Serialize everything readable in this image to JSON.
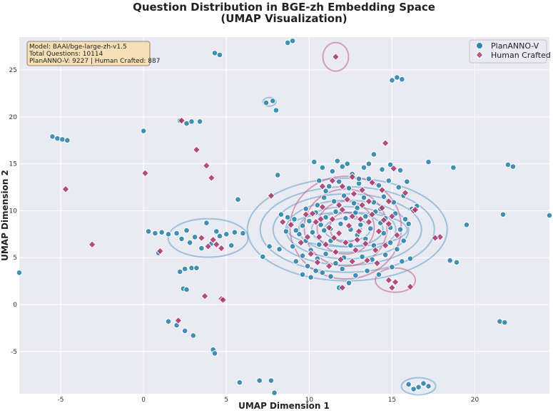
{
  "chart_data": {
    "type": "scatter",
    "title_line1": "Question Distribution in BGE-zh Embedding Space",
    "title_line2": "(UMAP Visualization)",
    "xlabel": "UMAP Dimension 1",
    "ylabel": "UMAP Dimension 2",
    "xlim": [
      -7.5,
      24.5
    ],
    "ylim": [
      -9.5,
      28.5
    ],
    "xticks": [
      -5,
      0,
      5,
      10,
      15,
      20
    ],
    "yticks": [
      -5,
      0,
      5,
      10,
      15,
      20,
      25
    ],
    "grid": true,
    "legend_position": "top-right",
    "info_box": {
      "lines": [
        "Model: BAAI/bge-large-zh-v1.5",
        "Total Questions: 10114",
        "PlanANNO-V: 9227 | Human Crafted: 887"
      ]
    },
    "series": [
      {
        "name": "PlanANNO-V",
        "marker": "circle",
        "color": "#2f86ad",
        "points": [
          [
            -7.5,
            3.4
          ],
          [
            -5.5,
            17.9
          ],
          [
            -5.2,
            17.7
          ],
          [
            -4.9,
            17.6
          ],
          [
            -4.6,
            17.5
          ],
          [
            0,
            18.5
          ],
          [
            0.3,
            7.8
          ],
          [
            0.7,
            7.6
          ],
          [
            1.1,
            7.7
          ],
          [
            0.9,
            5.5
          ],
          [
            1.5,
            7.5
          ],
          [
            2.0,
            7.6
          ],
          [
            2.3,
            7.0
          ],
          [
            2.6,
            7.9
          ],
          [
            2.2,
            3.5
          ],
          [
            2.5,
            3.8
          ],
          [
            2.9,
            3.9
          ],
          [
            3.2,
            3.9
          ],
          [
            2.4,
            1.7
          ],
          [
            2.6,
            1.6
          ],
          [
            1.5,
            -1.8
          ],
          [
            2.0,
            -2.2
          ],
          [
            2.5,
            -2.8
          ],
          [
            3.0,
            -3.3
          ],
          [
            4.2,
            -4.8
          ],
          [
            4.3,
            -5.2
          ],
          [
            5.8,
            -8.3
          ],
          [
            7.0,
            -8.1
          ],
          [
            7.7,
            -8.1
          ],
          [
            7.9,
            -9.4
          ],
          [
            2.2,
            19.6
          ],
          [
            2.6,
            19.3
          ],
          [
            2.9,
            19.5
          ],
          [
            3.4,
            19.5
          ],
          [
            4.3,
            26.8
          ],
          [
            4.6,
            26.6
          ],
          [
            7.4,
            21.5
          ],
          [
            7.8,
            21.7
          ],
          [
            8.0,
            20.7
          ],
          [
            8.7,
            27.9
          ],
          [
            9.0,
            28.1
          ],
          [
            5.7,
            11.2
          ],
          [
            8.1,
            13.8
          ],
          [
            3.8,
            8.7
          ],
          [
            4.6,
            7.3
          ],
          [
            5.0,
            7.5
          ],
          [
            5.5,
            7.7
          ],
          [
            5.3,
            6.3
          ],
          [
            6.0,
            7.6
          ],
          [
            3.5,
            6.0
          ],
          [
            4.1,
            6.5
          ],
          [
            3.1,
            7.2
          ],
          [
            2.8,
            6.6
          ],
          [
            4.4,
            7.8
          ],
          [
            15.3,
            24.2
          ],
          [
            15.6,
            24.0
          ],
          [
            15.0,
            23.9
          ],
          [
            17.2,
            15.2
          ],
          [
            18.7,
            14.6
          ],
          [
            22.0,
            14.9
          ],
          [
            22.3,
            14.7
          ],
          [
            16.5,
            10.5
          ],
          [
            19.5,
            8.5
          ],
          [
            21.7,
            9.6
          ],
          [
            24.5,
            9.5
          ],
          [
            18.5,
            4.7
          ],
          [
            18.9,
            4.5
          ],
          [
            21.5,
            -1.8
          ],
          [
            21.8,
            -1.9
          ],
          [
            16.0,
            -8.5
          ],
          [
            16.6,
            -8.8
          ],
          [
            17.2,
            -8.7
          ],
          [
            16.9,
            -8.4
          ],
          [
            16.3,
            -9.0
          ],
          [
            9.0,
            6.2
          ],
          [
            9.4,
            7.5
          ],
          [
            9.8,
            6.8
          ],
          [
            10.2,
            7.7
          ],
          [
            10.6,
            6.4
          ],
          [
            10.9,
            7.9
          ],
          [
            11.3,
            6.8
          ],
          [
            9.6,
            5.2
          ],
          [
            10.1,
            5.8
          ],
          [
            10.5,
            4.9
          ],
          [
            11.0,
            5.4
          ],
          [
            9.2,
            4.6
          ],
          [
            9.9,
            4.1
          ],
          [
            10.4,
            3.6
          ],
          [
            11.6,
            4.4
          ],
          [
            12.1,
            5.0
          ],
          [
            12.5,
            6.3
          ],
          [
            12.9,
            7.4
          ],
          [
            13.4,
            7.0
          ],
          [
            13.9,
            6.3
          ],
          [
            14.5,
            7.6
          ],
          [
            14.9,
            6.6
          ],
          [
            15.3,
            5.9
          ],
          [
            15.7,
            6.8
          ],
          [
            13.2,
            5.1
          ],
          [
            13.8,
            4.8
          ],
          [
            14.6,
            5.3
          ],
          [
            10.3,
            15.2
          ],
          [
            10.8,
            14.6
          ],
          [
            11.4,
            14.2
          ],
          [
            12.0,
            14.7
          ],
          [
            12.6,
            13.9
          ],
          [
            13.3,
            14.6
          ],
          [
            13.9,
            16.0
          ],
          [
            14.4,
            14.4
          ],
          [
            10.6,
            13.2
          ],
          [
            11.2,
            12.6
          ],
          [
            11.8,
            13.1
          ],
          [
            12.4,
            12.4
          ],
          [
            13.0,
            12.9
          ],
          [
            13.6,
            13.4
          ],
          [
            14.2,
            12.7
          ],
          [
            14.8,
            13.2
          ],
          [
            15.4,
            12.5
          ],
          [
            15.9,
            13.1
          ],
          [
            10.9,
            11.4
          ],
          [
            11.5,
            11.0
          ],
          [
            12.1,
            11.6
          ],
          [
            12.7,
            10.8
          ],
          [
            13.3,
            11.4
          ],
          [
            13.9,
            10.9
          ],
          [
            14.5,
            11.5
          ],
          [
            15.1,
            10.9
          ],
          [
            15.7,
            11.6
          ],
          [
            16.2,
            10.2
          ],
          [
            10.4,
            9.8
          ],
          [
            11.0,
            9.3
          ],
          [
            11.6,
            9.9
          ],
          [
            12.2,
            9.2
          ],
          [
            12.8,
            9.8
          ],
          [
            13.4,
            9.4
          ],
          [
            14.0,
            9.9
          ],
          [
            14.6,
            9.2
          ],
          [
            15.2,
            9.7
          ],
          [
            15.8,
            9.1
          ],
          [
            8.3,
            9.6
          ],
          [
            8.7,
            9.3
          ],
          [
            9.1,
            9.1
          ],
          [
            9.6,
            8.4
          ],
          [
            10.0,
            8.9
          ],
          [
            10.7,
            8.5
          ],
          [
            11.3,
            8.1
          ],
          [
            11.9,
            8.6
          ],
          [
            12.5,
            8.0
          ],
          [
            13.1,
            8.5
          ],
          [
            13.7,
            8.1
          ],
          [
            14.3,
            8.7
          ],
          [
            14.9,
            8.2
          ],
          [
            15.5,
            8.0
          ],
          [
            16.0,
            8.6
          ],
          [
            7.6,
            6.2
          ],
          [
            8.2,
            5.9
          ],
          [
            7.2,
            5.1
          ],
          [
            8.6,
            7.8
          ],
          [
            9.2,
            7.9
          ],
          [
            12.0,
            3.8
          ],
          [
            12.4,
            2.3
          ],
          [
            11.8,
            1.8
          ],
          [
            12.8,
            3.1
          ],
          [
            13.5,
            3.6
          ],
          [
            14.2,
            3.2
          ],
          [
            15.0,
            4.0
          ],
          [
            15.6,
            4.6
          ],
          [
            16.1,
            4.9
          ],
          [
            9.6,
            3.2
          ],
          [
            10.1,
            2.9
          ],
          [
            10.8,
            3.4
          ],
          [
            11.3,
            3.0
          ],
          [
            13.0,
            13.4
          ],
          [
            12.3,
            15.0
          ],
          [
            11.7,
            15.3
          ],
          [
            13.6,
            15.0
          ],
          [
            14.9,
            14.9
          ],
          [
            15.5,
            14.3
          ],
          [
            11.0,
            12.1
          ],
          [
            12.9,
            10.3
          ],
          [
            14.3,
            10.2
          ],
          [
            9.8,
            10.2
          ],
          [
            10.5,
            10.6
          ]
        ]
      },
      {
        "name": "Human Crafted",
        "marker": "diamond",
        "color": "#a8336a",
        "points": [
          [
            11.6,
            26.4
          ],
          [
            -4.7,
            12.3
          ],
          [
            -3.1,
            6.4
          ],
          [
            0.1,
            14.0
          ],
          [
            1.0,
            5.7
          ],
          [
            2.3,
            19.6
          ],
          [
            3.2,
            16.5
          ],
          [
            3.8,
            14.8
          ],
          [
            4.1,
            13.5
          ],
          [
            3.7,
            0.9
          ],
          [
            4.7,
            0.6
          ],
          [
            4.8,
            0.5
          ],
          [
            2.1,
            -1.7
          ],
          [
            3.9,
            6.2
          ],
          [
            4.4,
            6.4
          ],
          [
            4.7,
            6.0
          ],
          [
            3.5,
            7.1
          ],
          [
            4.2,
            6.9
          ],
          [
            7.7,
            11.6
          ],
          [
            14.6,
            17.2
          ],
          [
            15.8,
            11.9
          ],
          [
            16.3,
            10.0
          ],
          [
            16.4,
            10.1
          ],
          [
            15.1,
            14.5
          ],
          [
            17.9,
            7.2
          ],
          [
            17.6,
            7.1
          ],
          [
            16.1,
            1.9
          ],
          [
            14.8,
            2.6
          ],
          [
            15.2,
            2.4
          ],
          [
            15.0,
            1.8
          ],
          [
            12.0,
            1.8
          ],
          [
            10.2,
            9.7
          ],
          [
            10.8,
            10.4
          ],
          [
            11.4,
            9.1
          ],
          [
            12.0,
            10.1
          ],
          [
            12.6,
            9.4
          ],
          [
            13.2,
            10.6
          ],
          [
            13.8,
            9.6
          ],
          [
            14.4,
            10.3
          ],
          [
            15.0,
            9.4
          ],
          [
            11.2,
            8.2
          ],
          [
            11.8,
            7.6
          ],
          [
            12.4,
            8.4
          ],
          [
            13.0,
            7.8
          ],
          [
            13.6,
            8.8
          ],
          [
            14.2,
            7.8
          ],
          [
            14.8,
            8.6
          ],
          [
            10.6,
            7.2
          ],
          [
            11.0,
            6.4
          ],
          [
            11.6,
            5.6
          ],
          [
            12.2,
            6.6
          ],
          [
            12.8,
            5.8
          ],
          [
            13.4,
            6.5
          ],
          [
            14.0,
            5.8
          ],
          [
            14.6,
            6.3
          ],
          [
            10.1,
            5.4
          ],
          [
            10.5,
            4.5
          ],
          [
            11.2,
            4.1
          ],
          [
            9.5,
            6.6
          ],
          [
            9.9,
            7.2
          ],
          [
            12.0,
            12.6
          ],
          [
            12.6,
            13.6
          ],
          [
            13.2,
            12.2
          ],
          [
            13.8,
            13.0
          ],
          [
            14.4,
            12.2
          ],
          [
            11.4,
            13.2
          ],
          [
            10.8,
            12.6
          ],
          [
            12.3,
            11.2
          ],
          [
            13.6,
            11.0
          ],
          [
            14.8,
            11.0
          ],
          [
            11.8,
            10.6
          ],
          [
            9.8,
            9.6
          ],
          [
            10.4,
            8.8
          ],
          [
            8.4,
            8.8
          ],
          [
            8.9,
            8.5
          ],
          [
            13.5,
            4.7
          ],
          [
            14.1,
            4.4
          ],
          [
            12.6,
            4.6
          ],
          [
            11.9,
            4.8
          ],
          [
            12.7,
            11.8
          ],
          [
            13.1,
            9.1
          ],
          [
            11.5,
            7.1
          ],
          [
            12.9,
            6.9
          ],
          [
            14.5,
            9.0
          ],
          [
            15.3,
            7.4
          ],
          [
            10.7,
            9.1
          ]
        ]
      }
    ]
  }
}
